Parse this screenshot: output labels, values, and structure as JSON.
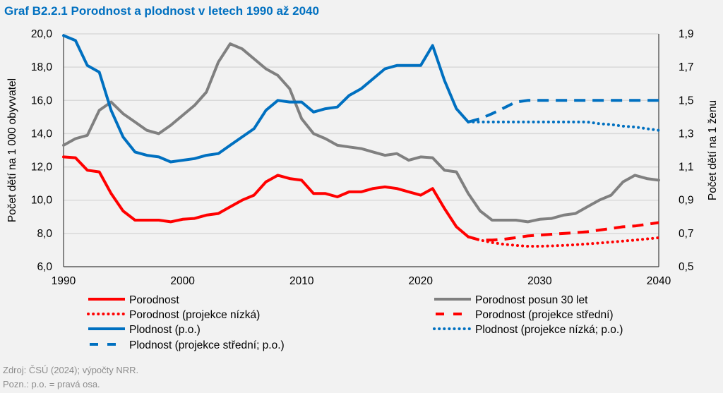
{
  "title": "Graf B2.2.1 Porodnost a plodnost v letech 1990 až 2040",
  "footer": {
    "source": "Zdroj: ČSÚ (2024); výpočty NRR.",
    "note": "Pozn.: p.o. = pravá osa."
  },
  "chart_data": {
    "type": "line",
    "title": "Graf B2.2.1 Porodnost a plodnost v letech 1990 až 2040",
    "xlabel": "",
    "ylabel": "Počet dětí na 1 000 obyvvatel",
    "y2label": "Počet dětí na 1 ženu",
    "xlim": [
      1990,
      2040
    ],
    "ylim": [
      6,
      20
    ],
    "y2lim": [
      0.5,
      1.9
    ],
    "xticks": [
      1990,
      2000,
      2010,
      2020,
      2030,
      2040
    ],
    "yticks": [
      "6,0",
      "8,0",
      "10,0",
      "12,0",
      "14,0",
      "16,0",
      "18,0",
      "20,0"
    ],
    "y2ticks": [
      "0,5",
      "0,7",
      "0,9",
      "1,1",
      "1,3",
      "1,5",
      "1,7",
      "1,9"
    ],
    "grid": "horizontal",
    "legend_placement": "bottom",
    "series": [
      {
        "name": "Porodnost",
        "axis": "left",
        "color": "#ff0000",
        "style": "solid",
        "x": [
          1990,
          1991,
          1992,
          1993,
          1994,
          1995,
          1996,
          1997,
          1998,
          1999,
          2000,
          2001,
          2002,
          2003,
          2004,
          2005,
          2006,
          2007,
          2008,
          2009,
          2010,
          2011,
          2012,
          2013,
          2014,
          2015,
          2016,
          2017,
          2018,
          2019,
          2020,
          2021,
          2022,
          2023,
          2024
        ],
        "values": [
          12.6,
          12.55,
          11.8,
          11.7,
          10.4,
          9.35,
          8.8,
          8.8,
          8.8,
          8.7,
          8.85,
          8.9,
          9.1,
          9.2,
          9.6,
          10.0,
          10.3,
          11.1,
          11.5,
          11.3,
          11.2,
          10.4,
          10.4,
          10.2,
          10.5,
          10.5,
          10.7,
          10.8,
          10.7,
          10.5,
          10.3,
          10.7,
          9.5,
          8.4,
          7.8
        ]
      },
      {
        "name": "Porodnost posun 30 let",
        "axis": "left",
        "color": "#808080",
        "style": "solid",
        "x": [
          1990,
          1991,
          1992,
          1993,
          1994,
          1995,
          1996,
          1997,
          1998,
          1999,
          2000,
          2001,
          2002,
          2003,
          2004,
          2005,
          2006,
          2007,
          2008,
          2009,
          2010,
          2011,
          2012,
          2013,
          2014,
          2015,
          2016,
          2017,
          2018,
          2019,
          2020,
          2021,
          2022,
          2023,
          2024,
          2025,
          2026,
          2027,
          2028,
          2029,
          2030,
          2031,
          2032,
          2033,
          2034,
          2035,
          2036,
          2037,
          2038,
          2039,
          2040
        ],
        "values": [
          13.3,
          13.7,
          13.9,
          15.4,
          15.9,
          15.2,
          14.7,
          14.2,
          14.0,
          14.5,
          15.1,
          15.7,
          16.5,
          18.3,
          19.4,
          19.1,
          18.5,
          17.9,
          17.5,
          16.7,
          14.9,
          14.0,
          13.7,
          13.3,
          13.2,
          13.1,
          12.9,
          12.7,
          12.8,
          12.4,
          12.6,
          12.55,
          11.8,
          11.7,
          10.4,
          9.35,
          8.8,
          8.8,
          8.8,
          8.7,
          8.85,
          8.9,
          9.1,
          9.2,
          9.6,
          10.0,
          10.3,
          11.1,
          11.5,
          11.3,
          11.2
        ]
      },
      {
        "name": "Porodnost (projekce nízká)",
        "axis": "left",
        "color": "#ff0000",
        "style": "dotted",
        "x": [
          2024,
          2025,
          2026,
          2027,
          2028,
          2029,
          2030,
          2031,
          2032,
          2033,
          2034,
          2035,
          2036,
          2037,
          2038,
          2039,
          2040
        ],
        "values": [
          7.8,
          7.6,
          7.45,
          7.35,
          7.28,
          7.23,
          7.23,
          7.25,
          7.28,
          7.32,
          7.37,
          7.42,
          7.48,
          7.54,
          7.6,
          7.67,
          7.74
        ]
      },
      {
        "name": "Porodnost (projekce střední)",
        "axis": "left",
        "color": "#ff0000",
        "style": "dashed",
        "x": [
          2024,
          2025,
          2026,
          2027,
          2028,
          2029,
          2030,
          2031,
          2032,
          2033,
          2034,
          2035,
          2036,
          2037,
          2038,
          2039,
          2040
        ],
        "values": [
          7.8,
          7.6,
          7.6,
          7.65,
          7.75,
          7.85,
          7.9,
          7.95,
          8.0,
          8.05,
          8.1,
          8.2,
          8.3,
          8.4,
          8.45,
          8.55,
          8.65
        ]
      },
      {
        "name": "Plodnost (p.o.)",
        "axis": "right",
        "color": "#0070c0",
        "style": "solid",
        "x": [
          1990,
          1991,
          1992,
          1993,
          1994,
          1995,
          1996,
          1997,
          1998,
          1999,
          2000,
          2001,
          2002,
          2003,
          2004,
          2005,
          2006,
          2007,
          2008,
          2009,
          2010,
          2011,
          2012,
          2013,
          2014,
          2015,
          2016,
          2017,
          2018,
          2019,
          2020,
          2021,
          2022,
          2023,
          2024
        ],
        "values": [
          1.89,
          1.86,
          1.71,
          1.67,
          1.44,
          1.28,
          1.19,
          1.17,
          1.16,
          1.13,
          1.14,
          1.15,
          1.17,
          1.18,
          1.23,
          1.28,
          1.33,
          1.44,
          1.5,
          1.49,
          1.49,
          1.43,
          1.45,
          1.46,
          1.53,
          1.57,
          1.63,
          1.69,
          1.71,
          1.71,
          1.71,
          1.83,
          1.62,
          1.45,
          1.37
        ]
      },
      {
        "name": "Plodnost (projekce nízká; p.o.)",
        "axis": "right",
        "color": "#0070c0",
        "style": "dotted",
        "x": [
          2024,
          2025,
          2026,
          2027,
          2028,
          2029,
          2030,
          2031,
          2032,
          2033,
          2034,
          2035,
          2036,
          2037,
          2038,
          2039,
          2040
        ],
        "values": [
          1.37,
          1.37,
          1.37,
          1.37,
          1.37,
          1.37,
          1.37,
          1.37,
          1.37,
          1.37,
          1.37,
          1.36,
          1.355,
          1.345,
          1.34,
          1.33,
          1.32
        ]
      },
      {
        "name": "Plodnost (projekce střední; p.o.)",
        "axis": "right",
        "color": "#0070c0",
        "style": "dashed",
        "x": [
          2024,
          2025,
          2026,
          2027,
          2028,
          2029,
          2030,
          2031,
          2032,
          2033,
          2034,
          2035,
          2036,
          2037,
          2038,
          2039,
          2040
        ],
        "values": [
          1.37,
          1.39,
          1.42,
          1.455,
          1.49,
          1.5,
          1.5,
          1.5,
          1.5,
          1.5,
          1.5,
          1.5,
          1.5,
          1.5,
          1.5,
          1.5,
          1.5
        ]
      }
    ],
    "legend_order": [
      0,
      1,
      2,
      3,
      4,
      5,
      6
    ]
  }
}
